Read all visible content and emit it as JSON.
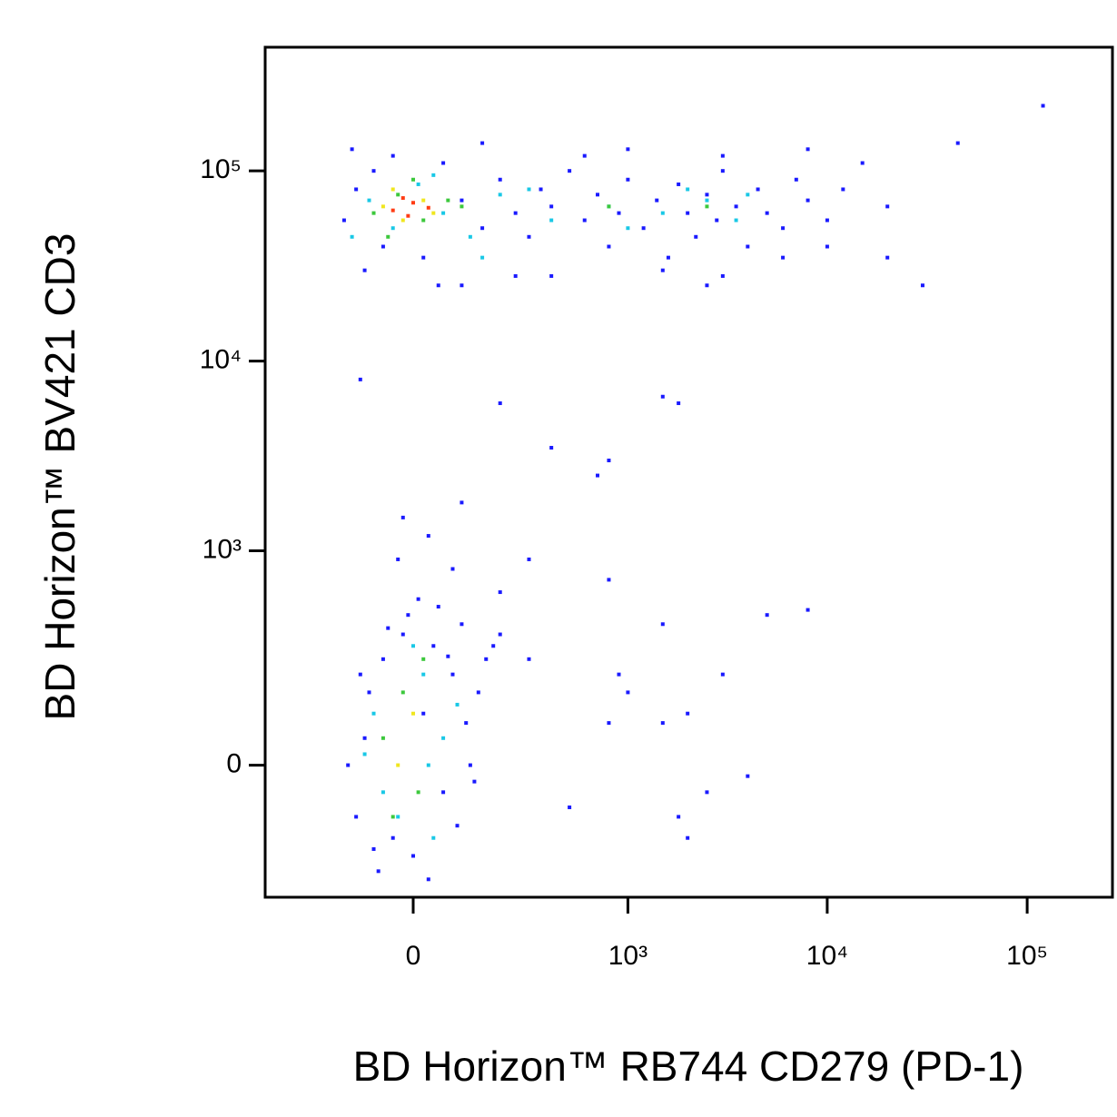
{
  "chart_data": {
    "type": "scatter",
    "xlabel": "BD Horizon™ RB744 CD279 (PD-1)",
    "ylabel": "BD Horizon™ BV421 CD3",
    "xscale": "biexponential",
    "yscale": "biexponential",
    "xlim": [
      -452,
      267000
    ],
    "ylim": [
      -356,
      447000
    ],
    "xticks": [
      0,
      {
        "value": 1000,
        "label": "10³"
      },
      {
        "value": 10000,
        "label": "10⁴"
      },
      {
        "value": 100000,
        "label": "10⁵"
      }
    ],
    "yticks": [
      0,
      {
        "value": 1000,
        "label": "10³"
      },
      {
        "value": 10000,
        "label": "10⁴"
      },
      {
        "value": 100000,
        "label": "10⁵"
      }
    ],
    "series": [
      {
        "color": "#1a1aff",
        "x": [
          -120,
          -80,
          -150,
          -60,
          20,
          60,
          100,
          150,
          200,
          250,
          300,
          350,
          400,
          500,
          600,
          700,
          800,
          900,
          1000,
          1200,
          1400,
          1600,
          1800,
          2000,
          2200,
          2500,
          2800,
          3000,
          3500,
          4000,
          4500,
          5000,
          6000,
          7000,
          8000,
          10000,
          12000,
          15000,
          20000,
          30000,
          -100,
          50,
          400,
          1500,
          3000,
          6000,
          -130,
          150,
          1000,
          3000,
          8000,
          45000,
          120000,
          600,
          250,
          2500,
          -40,
          100,
          20000,
          10000,
          -140,
          -100,
          -120,
          -90,
          -60,
          -40,
          -20,
          0,
          20,
          40,
          60,
          80,
          100,
          120,
          140,
          160,
          180,
          -70,
          30,
          -10,
          50,
          90,
          110,
          200,
          -110,
          -80,
          70,
          130,
          10,
          -50,
          -110,
          200,
          400,
          800,
          1500,
          1800,
          700,
          -20,
          30,
          100,
          80,
          200,
          800,
          1500,
          3000,
          5000,
          8000,
          1000,
          2000,
          4000,
          1800,
          2500,
          300,
          500,
          800,
          1500,
          2000,
          900,
          -30,
          300
        ],
        "y": [
          80000,
          100000,
          55000,
          40000,
          35000,
          110000,
          70000,
          50000,
          90000,
          60000,
          45000,
          80000,
          65000,
          100000,
          55000,
          75000,
          40000,
          60000,
          90000,
          50000,
          70000,
          35000,
          85000,
          60000,
          45000,
          75000,
          55000,
          100000,
          65000,
          40000,
          80000,
          60000,
          50000,
          90000,
          70000,
          55000,
          80000,
          110000,
          65000,
          25000,
          30000,
          25000,
          28000,
          30000,
          28000,
          35000,
          130000,
          140000,
          130000,
          120000,
          130000,
          140000,
          220000,
          120000,
          28000,
          25000,
          120000,
          25000,
          35000,
          40000,
          0,
          50,
          -100,
          150,
          250,
          -150,
          350,
          -200,
          100,
          300,
          -50,
          200,
          400,
          0,
          150,
          250,
          300,
          -250,
          -280,
          450,
          500,
          -120,
          80,
          350,
          200,
          -180,
          260,
          -30,
          550,
          380,
          8000,
          6000,
          3500,
          3000,
          6500,
          6000,
          2500,
          1500,
          1200,
          1800,
          800,
          600,
          700,
          400,
          200,
          450,
          480,
          150,
          100,
          -20,
          -100,
          -50,
          250,
          -80,
          80,
          80,
          -150,
          200,
          900,
          900
        ]
      },
      {
        "color": "#19c8e6",
        "x": [
          -90,
          -40,
          10,
          60,
          120,
          200,
          400,
          800,
          1500,
          2500,
          3500,
          -130,
          40,
          300,
          4000,
          150,
          1000,
          2000,
          -80,
          -30,
          20,
          60,
          -60,
          0,
          40,
          -100,
          90,
          30
        ],
        "y": [
          70000,
          50000,
          85000,
          60000,
          45000,
          75000,
          55000,
          65000,
          60000,
          70000,
          55000,
          45000,
          95000,
          80000,
          75000,
          35000,
          50000,
          80000,
          100,
          -100,
          200,
          50,
          -50,
          300,
          -150,
          20,
          120,
          0
        ]
      },
      {
        "color": "#3cc83c",
        "x": [
          -80,
          -30,
          20,
          70,
          -50,
          0,
          100,
          800,
          2500,
          -60,
          -20,
          10,
          -40,
          20
        ],
        "y": [
          60000,
          75000,
          55000,
          70000,
          45000,
          90000,
          65000,
          65000,
          65000,
          50,
          150,
          -50,
          -100,
          250
        ]
      },
      {
        "color": "#f0e61e",
        "x": [
          -60,
          -20,
          20,
          -40,
          40,
          -30,
          0
        ],
        "y": [
          65000,
          55000,
          70000,
          80000,
          60000,
          0,
          100
        ]
      },
      {
        "color": "#ff3c14",
        "x": [
          -40,
          0,
          -10,
          30,
          -20
        ],
        "y": [
          62000,
          68000,
          58000,
          64000,
          72000
        ]
      }
    ]
  }
}
